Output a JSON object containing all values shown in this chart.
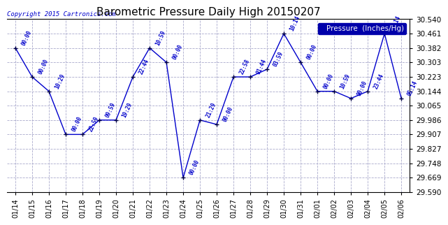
{
  "title": "Barometric Pressure Daily High 20150207",
  "copyright": "Copyright 2015 Cartronics.com",
  "legend_label": "Pressure  (Inches/Hg)",
  "dates": [
    "01/14",
    "01/15",
    "01/16",
    "01/17",
    "01/18",
    "01/19",
    "01/20",
    "01/21",
    "01/22",
    "01/23",
    "01/24",
    "01/25",
    "01/26",
    "01/27",
    "01/28",
    "01/29",
    "01/30",
    "01/31",
    "02/01",
    "02/02",
    "02/03",
    "02/04",
    "02/05",
    "02/06"
  ],
  "values": [
    30.382,
    30.223,
    30.144,
    29.907,
    29.907,
    29.986,
    29.986,
    30.223,
    30.382,
    30.303,
    29.669,
    29.986,
    29.962,
    30.223,
    30.223,
    30.265,
    30.461,
    30.303,
    30.144,
    30.144,
    30.105,
    30.144,
    30.461,
    30.105
  ],
  "time_labels": [
    "00:00",
    "00:00",
    "10:29",
    "00:00",
    "22:59",
    "09:59",
    "19:29",
    "22:44",
    "10:59",
    "00:00",
    "00:00",
    "21:29",
    "00:00",
    "22:58",
    "01:44",
    "03:59",
    "10:14",
    "00:00",
    "00:00",
    "10:59",
    "00:00",
    "23:44",
    "06:14",
    "05:14"
  ],
  "ylim": [
    29.59,
    30.54
  ],
  "yticks": [
    29.59,
    29.669,
    29.748,
    29.827,
    29.907,
    29.986,
    30.065,
    30.144,
    30.223,
    30.303,
    30.382,
    30.461,
    30.54
  ],
  "line_color": "#0000CC",
  "marker_color": "#000000",
  "bg_color": "#FFFFFF",
  "grid_color": "#AAAACC",
  "legend_bg": "#0000AA",
  "legend_fg": "#FFFFFF",
  "title_color": "#000000",
  "label_color": "#0000CC",
  "copyright_color": "#0000CC"
}
